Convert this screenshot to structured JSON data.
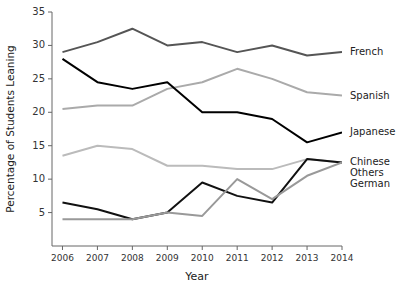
{
  "chart_data": {
    "type": "line",
    "x": [
      2006,
      2007,
      2008,
      2009,
      2010,
      2011,
      2012,
      2013,
      2014
    ],
    "series": [
      {
        "name": "French",
        "color": "#555555",
        "values": [
          29.0,
          30.5,
          32.5,
          30.0,
          30.5,
          29.0,
          30.0,
          28.5,
          29.0
        ]
      },
      {
        "name": "Spanish",
        "color": "#aaaaaa",
        "values": [
          20.5,
          21.0,
          21.0,
          23.5,
          24.5,
          26.5,
          25.0,
          23.0,
          22.5
        ]
      },
      {
        "name": "Japanese",
        "color": "#000000",
        "values": [
          28.0,
          24.5,
          23.5,
          24.5,
          20.0,
          20.0,
          19.0,
          15.5,
          17.0
        ]
      },
      {
        "name": "Chinese",
        "color": "#bbbbbb",
        "values": [
          13.5,
          15.0,
          14.5,
          12.0,
          12.0,
          11.5,
          11.5,
          13.0,
          12.5
        ]
      },
      {
        "name": "Others",
        "color": "#111111",
        "values": [
          6.5,
          5.5,
          4.0,
          5.0,
          9.5,
          7.5,
          6.5,
          13.0,
          12.5
        ]
      },
      {
        "name": "German",
        "color": "#999999",
        "values": [
          4.0,
          4.0,
          4.0,
          5.0,
          4.5,
          10.0,
          7.0,
          10.5,
          12.5
        ]
      }
    ],
    "x_label": "Year",
    "y_label": "Percentage of Students Leaning",
    "xlim": [
      2005.7,
      2014.0
    ],
    "xticks": [
      2006,
      2007,
      2008,
      2009,
      2010,
      2011,
      2012,
      2013,
      2014
    ],
    "ylim": [
      0,
      35
    ],
    "yticks": [
      5,
      10,
      15,
      20,
      25,
      30,
      35
    ],
    "grid": false
  }
}
